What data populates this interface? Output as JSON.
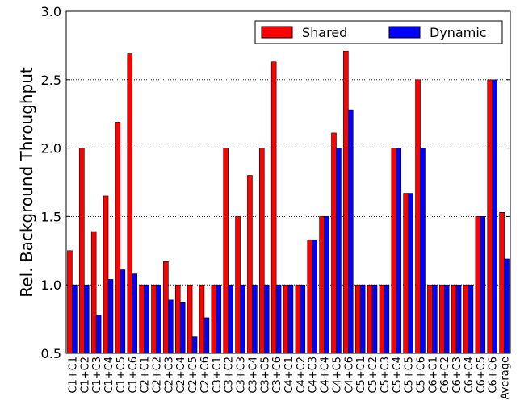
{
  "chart_data": {
    "type": "bar",
    "ylabel": "Rel. Background Throughput",
    "categories": [
      "C1+C1",
      "C1+C2",
      "C1+C3",
      "C1+C4",
      "C1+C5",
      "C1+C6",
      "C2+C1",
      "C2+C2",
      "C2+C3",
      "C2+C4",
      "C2+C5",
      "C2+C6",
      "C3+C1",
      "C3+C2",
      "C3+C3",
      "C3+C4",
      "C3+C5",
      "C3+C6",
      "C4+C1",
      "C4+C2",
      "C4+C3",
      "C4+C4",
      "C4+C5",
      "C4+C6",
      "C5+C1",
      "C5+C2",
      "C5+C3",
      "C5+C4",
      "C5+C5",
      "C5+C6",
      "C6+C1",
      "C6+C2",
      "C6+C3",
      "C6+C4",
      "C6+C5",
      "C6+C6",
      "Average"
    ],
    "series": [
      {
        "name": "Shared",
        "color": "#ff0000",
        "values": [
          1.25,
          2.0,
          1.39,
          1.65,
          2.19,
          2.69,
          1.0,
          1.0,
          1.17,
          1.0,
          1.0,
          1.0,
          1.0,
          2.0,
          1.5,
          1.8,
          2.0,
          2.63,
          1.0,
          1.0,
          1.33,
          1.5,
          2.11,
          2.71,
          1.0,
          1.0,
          1.0,
          2.0,
          1.67,
          2.5,
          1.0,
          1.0,
          1.0,
          1.0,
          1.5,
          2.5,
          1.53
        ]
      },
      {
        "name": "Dynamic",
        "color": "#0000ff",
        "values": [
          1.0,
          1.0,
          0.78,
          1.04,
          1.11,
          1.08,
          1.0,
          1.0,
          0.89,
          0.87,
          0.62,
          0.76,
          1.0,
          1.0,
          1.0,
          1.0,
          1.0,
          1.0,
          1.0,
          1.0,
          1.33,
          1.5,
          2.0,
          2.28,
          1.0,
          1.0,
          1.0,
          2.0,
          1.67,
          2.0,
          1.0,
          1.0,
          1.0,
          1.0,
          1.5,
          2.5,
          1.19
        ]
      }
    ],
    "ylim": [
      0.5,
      3.0
    ],
    "yticks": [
      {
        "value": 0.5,
        "label": "0.5"
      },
      {
        "value": 1.0,
        "label": "1.0"
      },
      {
        "value": 1.5,
        "label": "1.5"
      },
      {
        "value": 2.0,
        "label": "2.0"
      },
      {
        "value": 2.5,
        "label": "2.5"
      },
      {
        "value": 3.0,
        "label": "3.0"
      }
    ],
    "grid": true,
    "legend": "upper right"
  }
}
